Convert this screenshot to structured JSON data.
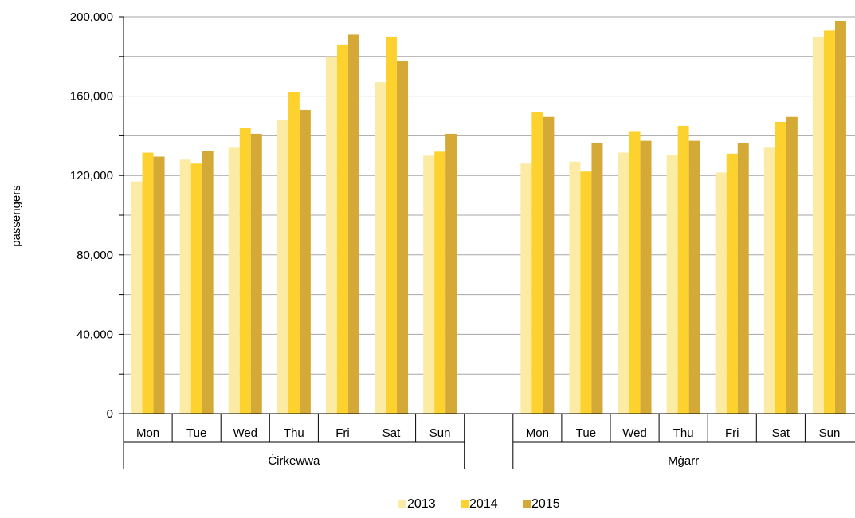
{
  "chart_data": {
    "type": "bar",
    "ylabel": "passengers",
    "ylim": [
      0,
      200000
    ],
    "yticks": [
      0,
      40000,
      80000,
      120000,
      160000,
      200000
    ],
    "ytick_labels": [
      "0",
      "40,000",
      "80,000",
      "120,000",
      "160,000",
      "200,000"
    ],
    "grid": true,
    "legend_position": "bottom-center",
    "groups": [
      {
        "name": "Ċirkewwa",
        "categories": [
          "Mon",
          "Tue",
          "Wed",
          "Thu",
          "Fri",
          "Sat",
          "Sun"
        ],
        "series": [
          {
            "name": "2013",
            "color": "#FCEBA4",
            "values": [
              117000,
              128000,
              134000,
              148000,
              180000,
              167000,
              130000
            ]
          },
          {
            "name": "2014",
            "color": "#FDD22E",
            "values": [
              131500,
              126000,
              144000,
              162000,
              186000,
              190000,
              132000
            ]
          },
          {
            "name": "2015",
            "color": "#D4A935",
            "values": [
              129500,
              132500,
              141000,
              153000,
              191000,
              177500,
              141000
            ]
          }
        ]
      },
      {
        "name": "Mġarr",
        "categories": [
          "Mon",
          "Tue",
          "Wed",
          "Thu",
          "Fri",
          "Sat",
          "Sun"
        ],
        "series": [
          {
            "name": "2013",
            "color": "#FCEBA4",
            "values": [
              126000,
              127000,
              131500,
              130500,
              121500,
              134000,
              190000
            ]
          },
          {
            "name": "2014",
            "color": "#FDD22E",
            "values": [
              152000,
              122000,
              142000,
              145000,
              131000,
              147000,
              193000
            ]
          },
          {
            "name": "2015",
            "color": "#D4A935",
            "values": [
              149500,
              136500,
              137500,
              137500,
              136500,
              149500,
              198000
            ]
          }
        ]
      }
    ],
    "legend": [
      {
        "label": "2013",
        "color": "#FCEBA4"
      },
      {
        "label": "2014",
        "color": "#FDD22E"
      },
      {
        "label": "2015",
        "color": "#D4A935"
      }
    ]
  }
}
